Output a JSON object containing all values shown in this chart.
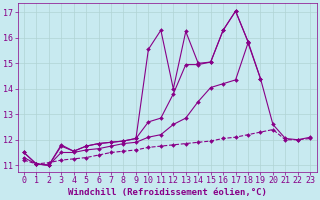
{
  "background_color": "#c8eaf0",
  "grid_color": "#b0d4d4",
  "line_color": "#880088",
  "xlabel": "Windchill (Refroidissement éolien,°C)",
  "xlabel_fontsize": 6.5,
  "tick_fontsize": 6,
  "xlim": [
    -0.5,
    23.5
  ],
  "ylim": [
    10.75,
    17.35
  ],
  "yticks": [
    11,
    12,
    13,
    14,
    15,
    16,
    17
  ],
  "xticks": [
    0,
    1,
    2,
    3,
    4,
    5,
    6,
    7,
    8,
    9,
    10,
    11,
    12,
    13,
    14,
    15,
    16,
    17,
    18,
    19,
    20,
    21,
    22,
    23
  ],
  "series": [
    {
      "x": [
        0,
        1,
        2,
        3,
        4,
        5,
        6,
        7,
        8,
        9,
        10,
        11,
        12,
        13,
        14,
        15,
        16,
        17,
        18,
        19,
        20,
        21,
        22,
        23
      ],
      "y": [
        11.5,
        11.05,
        11.0,
        11.8,
        11.55,
        11.75,
        11.85,
        11.9,
        11.95,
        12.05,
        15.55,
        16.3,
        14.0,
        16.25,
        15.0,
        15.05,
        16.3,
        17.05,
        15.85,
        null,
        null,
        null,
        null,
        null
      ],
      "style": "solid"
    },
    {
      "x": [
        0,
        1,
        2,
        3,
        4,
        5,
        6,
        7,
        8,
        9,
        10,
        11,
        12,
        13,
        14,
        15,
        16,
        17,
        18,
        19,
        20,
        21,
        22,
        23
      ],
      "y": [
        11.5,
        11.05,
        11.0,
        11.75,
        11.55,
        11.75,
        11.85,
        11.9,
        11.95,
        12.05,
        12.7,
        12.85,
        13.8,
        14.95,
        14.95,
        15.05,
        16.3,
        17.05,
        15.85,
        14.4,
        12.6,
        12.05,
        12.0,
        12.1
      ],
      "style": "solid"
    },
    {
      "x": [
        0,
        1,
        2,
        3,
        4,
        5,
        6,
        7,
        8,
        9,
        10,
        11,
        12,
        13,
        14,
        15,
        16,
        17,
        18,
        19,
        20,
        21,
        22,
        23
      ],
      "y": [
        11.3,
        11.05,
        11.0,
        11.5,
        11.5,
        11.6,
        11.65,
        11.75,
        11.85,
        11.9,
        12.1,
        12.2,
        12.6,
        12.85,
        13.5,
        14.05,
        14.2,
        14.35,
        15.8,
        14.4,
        null,
        null,
        null,
        null
      ],
      "style": "solid"
    },
    {
      "x": [
        0,
        1,
        2,
        3,
        4,
        5,
        6,
        7,
        8,
        9,
        10,
        11,
        12,
        13,
        14,
        15,
        16,
        17,
        18,
        19,
        20,
        21,
        22,
        23
      ],
      "y": [
        11.2,
        11.05,
        11.1,
        11.2,
        11.25,
        11.3,
        11.4,
        11.5,
        11.55,
        11.6,
        11.7,
        11.75,
        11.8,
        11.85,
        11.9,
        11.95,
        12.05,
        12.1,
        12.2,
        12.3,
        12.4,
        12.0,
        12.0,
        12.05
      ],
      "style": "dashed"
    }
  ]
}
